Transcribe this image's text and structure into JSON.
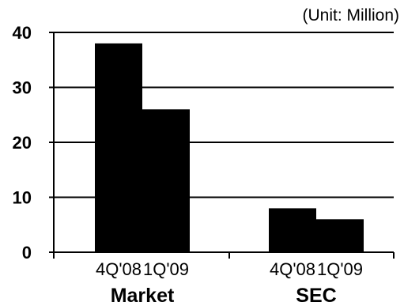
{
  "chart_data": {
    "type": "bar",
    "unit_label": "(Unit: Million)",
    "groups": [
      {
        "name": "Market",
        "categories": [
          "4Q'08",
          "1Q'09"
        ],
        "values": [
          38,
          26
        ]
      },
      {
        "name": "SEC",
        "categories": [
          "4Q'08",
          "1Q'09"
        ],
        "values": [
          8,
          6
        ]
      }
    ],
    "ylim": [
      0,
      40
    ],
    "yticks": [
      0,
      10,
      20,
      30,
      40
    ],
    "grid": true,
    "colors": {
      "bar": "#000000",
      "grid": "#000000",
      "background": "#ffffff"
    }
  }
}
